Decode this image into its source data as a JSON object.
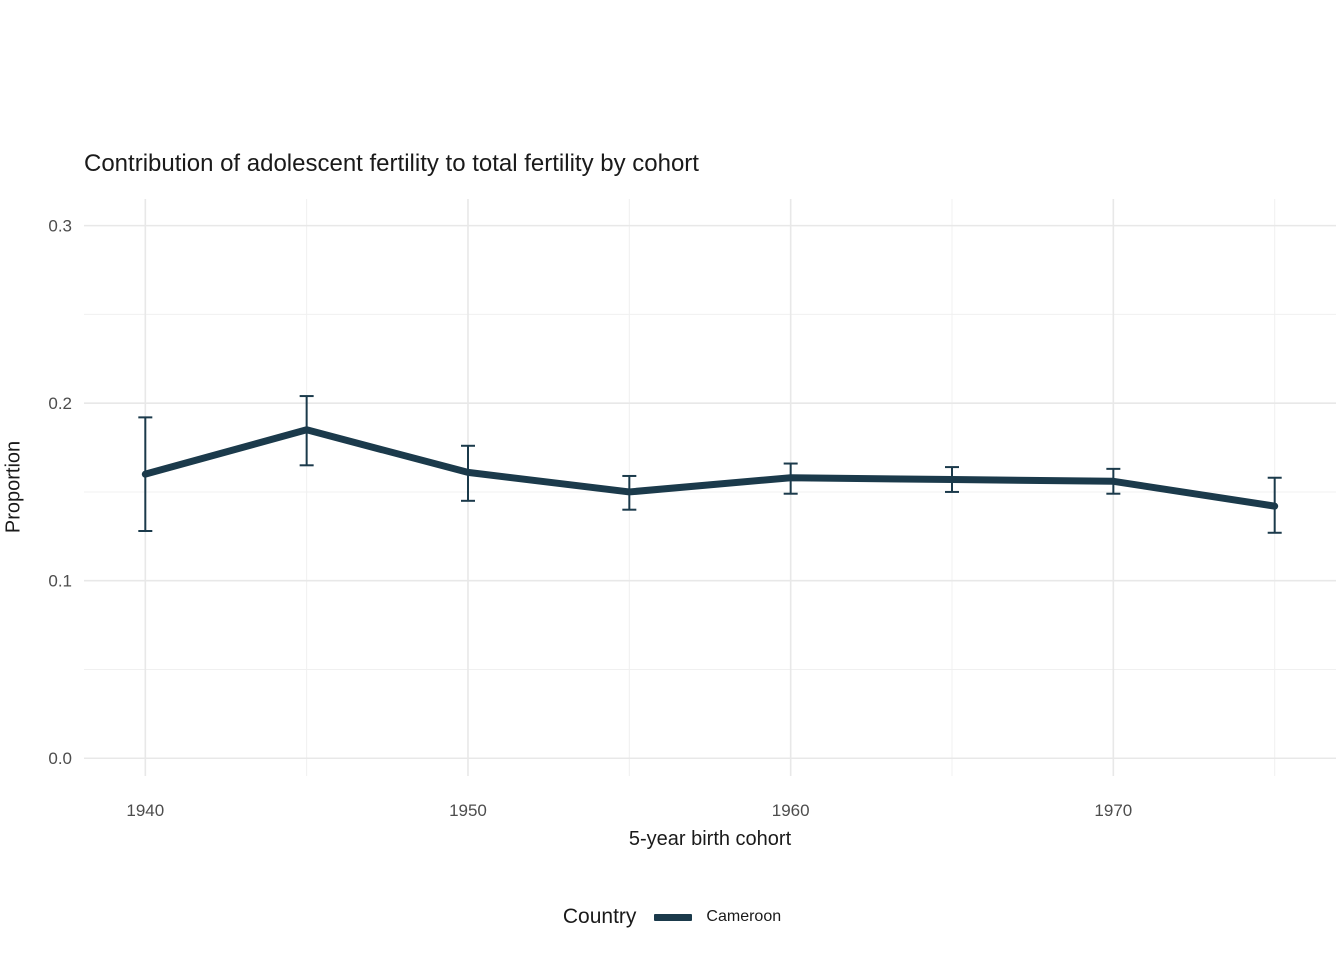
{
  "chart_data": {
    "type": "line",
    "title": "Contribution of adolescent fertility to total fertility by cohort",
    "xlabel": "5-year birth cohort",
    "ylabel": "Proportion",
    "x_ticks": [
      1940,
      1950,
      1960,
      1970
    ],
    "x_minor_ticks": [
      1945,
      1955,
      1965,
      1975
    ],
    "y_ticks": [
      0.0,
      0.1,
      0.2,
      0.3
    ],
    "y_minor_ticks": [
      0.05,
      0.15,
      0.25
    ],
    "xlim": [
      1938.1,
      1976.9
    ],
    "ylim": [
      -0.01,
      0.315
    ],
    "grid": true,
    "colors": {
      "series": "#1B3A4B",
      "grid_major": "#e8e8e8",
      "grid_minor": "#f0f0f0",
      "tick_label": "#4d4d4d"
    },
    "legend": {
      "title": "Country",
      "position": "bottom",
      "entries": [
        {
          "label": "Cameroon",
          "color": "#1B3A4B"
        }
      ]
    },
    "series": [
      {
        "name": "Cameroon",
        "color": "#1B3A4B",
        "x": [
          1940,
          1945,
          1950,
          1955,
          1960,
          1965,
          1970,
          1975
        ],
        "y": [
          0.16,
          0.185,
          0.161,
          0.15,
          0.158,
          0.157,
          0.156,
          0.142
        ],
        "y_low": [
          0.128,
          0.165,
          0.145,
          0.14,
          0.149,
          0.15,
          0.149,
          0.127
        ],
        "y_high": [
          0.192,
          0.204,
          0.176,
          0.159,
          0.166,
          0.164,
          0.163,
          0.158
        ]
      }
    ]
  }
}
